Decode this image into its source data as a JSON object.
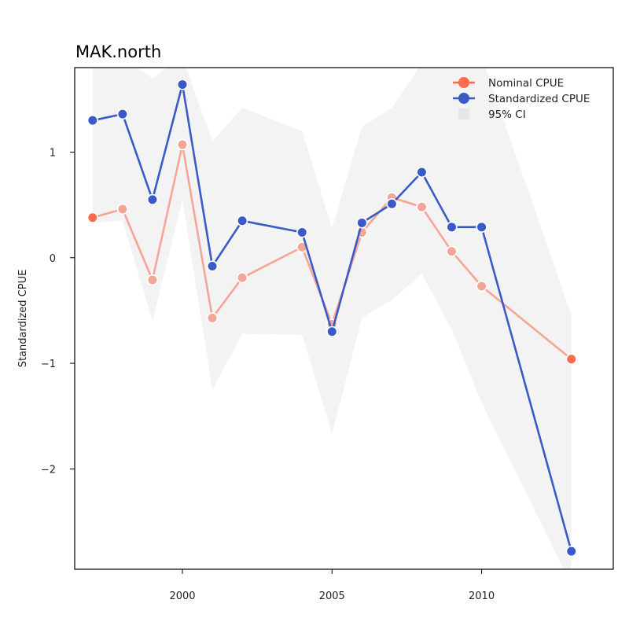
{
  "chart_data": {
    "type": "line",
    "title": "MAK.north",
    "xlabel": "",
    "ylabel": "Standardized CPUE",
    "xlim": [
      1996.4,
      2014.4
    ],
    "ylim": [
      -2.95,
      1.8
    ],
    "x_ticks": [
      2000,
      2005,
      2010
    ],
    "y_ticks": [
      -2,
      -1,
      0,
      1
    ],
    "y_tick_labels": [
      "−2",
      "−1",
      "0",
      "1"
    ],
    "grid": false,
    "legend_position": "top-right",
    "colors": {
      "nominal": "#f4a596",
      "nominal_legend": "#fb6b4e",
      "standardized": "#3a5bc7",
      "ci": "#f3f3f3"
    },
    "legend": [
      {
        "label": "Nominal CPUE",
        "kind": "line-point",
        "color": "#fb6b4e"
      },
      {
        "label": "Standardized CPUE",
        "kind": "line-point",
        "color": "#3a5bc7"
      },
      {
        "label": "95% CI",
        "kind": "box",
        "color": "#e6e6e6"
      }
    ],
    "series": [
      {
        "name": "Nominal CPUE",
        "x": [
          1997,
          1998,
          1999,
          2000,
          2001,
          2002,
          2004,
          2005,
          2006,
          2007,
          2008,
          2009,
          2010,
          2013
        ],
        "y": [
          0.38,
          0.46,
          -0.21,
          1.07,
          -0.57,
          -0.19,
          0.1,
          -0.63,
          0.24,
          0.57,
          0.48,
          0.06,
          -0.27,
          -0.96
        ]
      },
      {
        "name": "Standardized CPUE",
        "x": [
          1997,
          1998,
          1999,
          2000,
          2001,
          2002,
          2004,
          2005,
          2006,
          2007,
          2008,
          2009,
          2010,
          2013
        ],
        "y": [
          1.3,
          1.36,
          0.55,
          1.64,
          -0.08,
          0.35,
          0.24,
          -0.7,
          0.33,
          0.51,
          0.81,
          0.29,
          0.29,
          -2.78
        ]
      },
      {
        "name": "95% CI",
        "x": [
          1997,
          1998,
          1999,
          2000,
          2001,
          2002,
          2004,
          2005,
          2006,
          2007,
          2008,
          2009,
          2010,
          2013
        ],
        "lower": [
          0.33,
          0.35,
          -0.6,
          0.55,
          -1.25,
          -0.72,
          -0.73,
          -1.67,
          -0.57,
          -0.4,
          -0.15,
          -0.68,
          -1.37,
          -3.1
        ],
        "upper": [
          1.9,
          1.9,
          1.7,
          1.9,
          1.1,
          1.42,
          1.2,
          0.28,
          1.24,
          1.42,
          1.84,
          1.9,
          1.9,
          -0.54
        ]
      }
    ]
  }
}
